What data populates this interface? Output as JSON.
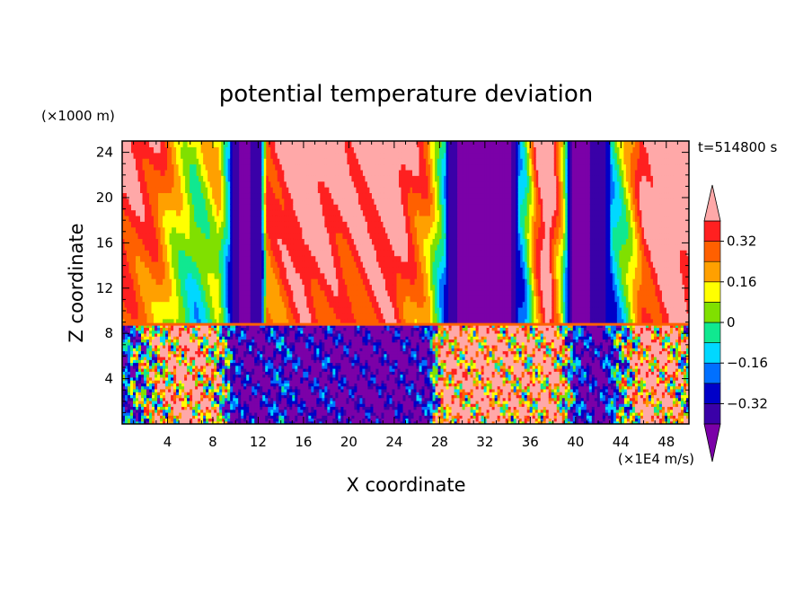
{
  "chart_data": {
    "type": "heatmap",
    "title": "potential temperature deviation",
    "xlabel": "X coordinate",
    "ylabel": "Z coordinate",
    "x_units": "(×1E4 m/s)",
    "y_units": "(×1000 m)",
    "time_label": "t=514800 s",
    "xlim": [
      0,
      50
    ],
    "ylim": [
      0,
      25
    ],
    "x_ticks": [
      4,
      8,
      12,
      16,
      20,
      24,
      28,
      32,
      36,
      40,
      44,
      48
    ],
    "y_ticks": [
      4,
      8,
      12,
      16,
      20,
      24
    ],
    "interface_z": 8.8,
    "colorbar": {
      "levels": [
        -0.4,
        -0.32,
        -0.24,
        -0.16,
        -0.08,
        0,
        0.08,
        0.16,
        0.24,
        0.32,
        0.4
      ],
      "labels": [
        "0.32",
        "0.16",
        "0",
        "−0.16",
        "−0.32"
      ],
      "label_values": [
        0.32,
        0.16,
        0,
        -0.16,
        -0.32
      ],
      "colors": [
        "#7b00a8",
        "#3a00a8",
        "#0000c8",
        "#0070ff",
        "#00d8ff",
        "#10e890",
        "#80e000",
        "#ffff00",
        "#ffa000",
        "#ff6000",
        "#ff2020",
        "#ffa8a8"
      ]
    },
    "upper_layer_columns": [
      {
        "x": 0.0,
        "level": 9
      },
      {
        "x": 3.0,
        "level": 8
      },
      {
        "x": 4.5,
        "level": 6
      },
      {
        "x": 6.5,
        "level": 4
      },
      {
        "x": 8.5,
        "level": 6
      },
      {
        "x": 9.5,
        "level": 2
      },
      {
        "x": 10.5,
        "level": 0
      },
      {
        "x": 12.3,
        "level": 1
      },
      {
        "x": 12.8,
        "level": 8
      },
      {
        "x": 16.0,
        "level": 10
      },
      {
        "x": 20.0,
        "level": 9
      },
      {
        "x": 24.0,
        "level": 10
      },
      {
        "x": 27.0,
        "level": 7
      },
      {
        "x": 28.0,
        "level": 4
      },
      {
        "x": 29.0,
        "level": 1
      },
      {
        "x": 30.0,
        "level": 0
      },
      {
        "x": 34.0,
        "level": 0
      },
      {
        "x": 35.5,
        "level": 3
      },
      {
        "x": 36.5,
        "level": 8
      },
      {
        "x": 37.5,
        "level": 11
      },
      {
        "x": 38.8,
        "level": 6
      },
      {
        "x": 39.5,
        "level": 1
      },
      {
        "x": 40.0,
        "level": 0
      },
      {
        "x": 42.5,
        "level": 1
      },
      {
        "x": 44.5,
        "level": 5
      },
      {
        "x": 46.0,
        "level": 9
      },
      {
        "x": 48.5,
        "level": 11
      },
      {
        "x": 50.0,
        "level": 10
      }
    ],
    "lower_layer_columns": [
      {
        "x": 0.0,
        "level": 2
      },
      {
        "x": 2.0,
        "level": 5
      },
      {
        "x": 4.0,
        "level": 9
      },
      {
        "x": 6.0,
        "level": 11
      },
      {
        "x": 8.0,
        "level": 8
      },
      {
        "x": 10.0,
        "level": 1
      },
      {
        "x": 12.0,
        "level": 0
      },
      {
        "x": 14.0,
        "level": 2
      },
      {
        "x": 16.0,
        "level": 0
      },
      {
        "x": 18.0,
        "level": 1
      },
      {
        "x": 20.0,
        "level": 0
      },
      {
        "x": 24.0,
        "level": 0
      },
      {
        "x": 27.0,
        "level": 1
      },
      {
        "x": 28.5,
        "level": 11
      },
      {
        "x": 30.0,
        "level": 10
      },
      {
        "x": 32.0,
        "level": 11
      },
      {
        "x": 34.0,
        "level": 10
      },
      {
        "x": 36.0,
        "level": 9
      },
      {
        "x": 38.0,
        "level": 11
      },
      {
        "x": 40.0,
        "level": 2
      },
      {
        "x": 42.0,
        "level": 0
      },
      {
        "x": 44.0,
        "level": 4
      },
      {
        "x": 46.0,
        "level": 11
      },
      {
        "x": 48.0,
        "level": 10
      },
      {
        "x": 50.0,
        "level": 6
      }
    ]
  }
}
